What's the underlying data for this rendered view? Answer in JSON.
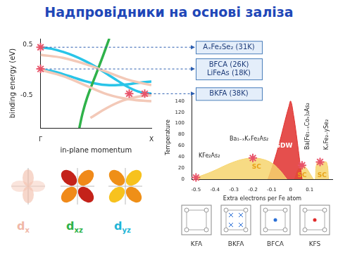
{
  "title": "Надпровідники на основі заліза",
  "chart_data": [
    {
      "type": "line",
      "xlabel": "in-plane momentum",
      "ylabel": "binding energy (eV)",
      "xlim": [
        0,
        1
      ],
      "xticks": [
        {
          "value": 0,
          "label": "Γ"
        },
        {
          "value": 1,
          "label": "X"
        }
      ],
      "ylim": [
        -1.15,
        0.62
      ],
      "yticks": [
        -0.5,
        0.5
      ],
      "grid": false,
      "series": [
        {
          "color": "#f3c9b8",
          "x": [
            0,
            0.2,
            0.4,
            0.6,
            0.8,
            1
          ],
          "values": [
            0.3,
            0.24,
            0.12,
            -0.04,
            -0.2,
            -0.3
          ]
        },
        {
          "color": "#f3c9b8",
          "x": [
            0,
            0.2,
            0.4,
            0.6,
            0.8,
            1
          ],
          "values": [
            0,
            -0.12,
            -0.3,
            -0.48,
            -0.58,
            -0.62
          ]
        },
        {
          "color": "#f3c9b8",
          "x": [
            0.45,
            0.6,
            0.75,
            0.9,
            1
          ],
          "values": [
            -0.95,
            -0.75,
            -0.6,
            -0.52,
            -0.5
          ]
        },
        {
          "color": "#2fb24a",
          "x": [
            0.35,
            0.38,
            0.42,
            0.48,
            0.55,
            0.62
          ],
          "values": [
            -1.15,
            -0.85,
            -0.55,
            -0.2,
            0.2,
            0.62
          ]
        },
        {
          "color": "#29c4e8",
          "x": [
            0,
            0.1,
            0.2,
            0.3,
            0.4,
            0.5,
            0.6,
            0.7,
            0.8,
            0.9,
            1
          ],
          "values": [
            0.45,
            0.42,
            0.36,
            0.28,
            0.18,
            0.06,
            -0.08,
            -0.22,
            -0.35,
            -0.44,
            -0.47
          ]
        },
        {
          "color": "#29c4e8",
          "x": [
            0,
            0.1,
            0.2,
            0.3,
            0.4,
            0.5,
            0.6,
            0.7,
            0.8,
            0.9,
            1
          ],
          "values": [
            0,
            -0.02,
            -0.08,
            -0.15,
            -0.22,
            -0.27,
            -0.3,
            -0.3,
            -0.28,
            -0.25,
            -0.23
          ]
        },
        {
          "type": "scatter",
          "marker": "star",
          "color": "#e8546a",
          "x": [
            0,
            0,
            0.8,
            0.94
          ],
          "values": [
            0.45,
            0.02,
            -0.47,
            -0.47
          ]
        }
      ],
      "annotations": [
        {
          "lines": [
            "AₓFe₂Se₂ (31K)"
          ],
          "x": 0,
          "y": 0.45
        },
        {
          "lines": [
            "BFCA (26K)",
            "LiFeAs (18K)"
          ],
          "x": 0,
          "y": 0.02
        },
        {
          "lines": [
            "BKFA (38K)"
          ],
          "x": 0.94,
          "y": -0.47
        }
      ]
    },
    {
      "type": "area",
      "xlabel": "Extra electrons per Fe atom",
      "ylabel": "Temperature",
      "xlim": [
        -0.52,
        0.22
      ],
      "xticks": [
        -0.5,
        -0.4,
        -0.3,
        -0.2,
        -0.1,
        0,
        0.1
      ],
      "ylim": [
        0,
        150
      ],
      "yticks": [
        0,
        20,
        40,
        60,
        80,
        100,
        120,
        140
      ],
      "grid": false,
      "series": [
        {
          "color": "#f6d56e",
          "x": [
            -0.5,
            -0.45,
            -0.4,
            -0.35,
            -0.3,
            -0.25,
            -0.2,
            -0.15,
            -0.1,
            -0.06,
            -0.02
          ],
          "values": [
            3,
            9,
            16,
            24,
            31,
            36,
            38,
            36,
            29,
            17,
            0
          ]
        },
        {
          "color": "#e0302e",
          "x": [
            -0.12,
            -0.09,
            -0.06,
            -0.03,
            -0.01,
            0,
            0.015,
            0.03,
            0.045,
            0.06
          ],
          "values": [
            0,
            30,
            65,
            105,
            130,
            140,
            115,
            80,
            40,
            0
          ]
        },
        {
          "color": "#f6d56e",
          "x": [
            0.02,
            0.04,
            0.06,
            0.08,
            0.1,
            0.12
          ],
          "values": [
            0,
            18,
            25,
            21,
            11,
            0
          ]
        },
        {
          "color": "#f6d56e",
          "x": [
            0.13,
            0.14,
            0.17,
            0.19,
            0.2
          ],
          "values": [
            0,
            30,
            31,
            30,
            0
          ]
        },
        {
          "type": "scatter",
          "marker": "star",
          "color": "#e8546a",
          "x": [
            -0.5,
            -0.2,
            0.06,
            0.155
          ],
          "values": [
            3,
            38,
            25,
            31
          ]
        }
      ],
      "annotations": [
        {
          "text": "KFe₂As₂",
          "x": -0.43,
          "y": 42,
          "color": "#222222"
        },
        {
          "text": "Ba₁₋ₓKₓFe₂As₂",
          "x": -0.22,
          "y": 72,
          "color": "#222222"
        },
        {
          "text": "SC",
          "x": -0.18,
          "y": 22,
          "color": "#e8a317"
        },
        {
          "text": "SDW",
          "x": -0.035,
          "y": 60,
          "color": "#ffffff"
        },
        {
          "text": "Ba(Fe₁₋ₓCoₓ)₂As₂",
          "x": 0.09,
          "y": 95,
          "color": "#222222",
          "orientation": "vertical"
        },
        {
          "text": "KₓFe₂₋ySe₂",
          "x": 0.19,
          "y": 80,
          "color": "#222222",
          "orientation": "vertical"
        },
        {
          "text": "SC",
          "x": 0.06,
          "y": 7,
          "color": "#e8a317"
        },
        {
          "text": "SC",
          "x": 0.165,
          "y": 7,
          "color": "#e8a317"
        }
      ]
    }
  ],
  "orbitals": [
    {
      "base": "d",
      "sub": "x",
      "color": "#f0b8a8"
    },
    {
      "base": "d",
      "sub": "xz",
      "color": "#2fb24a"
    },
    {
      "base": "d",
      "sub": "yz",
      "color": "#1fb5d6"
    }
  ],
  "structures": [
    "KFA",
    "BKFA",
    "BFCA",
    "KFS"
  ]
}
